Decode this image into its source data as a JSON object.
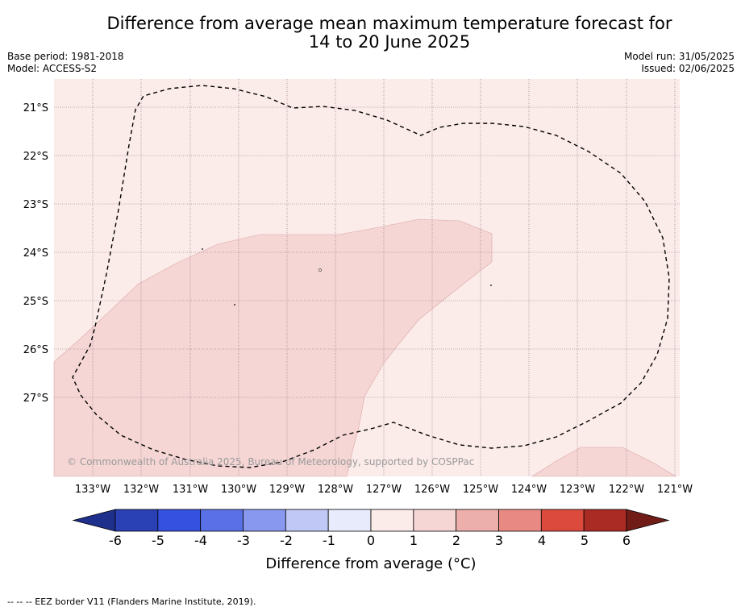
{
  "header": {
    "title_line1": "Difference from average mean maximum temperature forecast for",
    "title_line2": "14 to 20 June 2025",
    "base_period": "Base period: 1981-2018",
    "model": "Model: ACCESS-S2",
    "model_run": "Model run: 31/05/2025",
    "issued": "Issued: 02/06/2025"
  },
  "map": {
    "lat_labels": [
      "21°S",
      "22°S",
      "23°S",
      "24°S",
      "25°S",
      "26°S",
      "27°S"
    ],
    "lon_labels": [
      "133°W",
      "132°W",
      "131°W",
      "130°W",
      "129°W",
      "128°W",
      "127°W",
      "126°W",
      "125°W",
      "124°W",
      "123°W",
      "122°W",
      "121°W"
    ],
    "copyright": "© Commonwealth of Australia 2025, Bureau of Meteorology, supported by COSPPac",
    "background_class_color": "#fbebe9",
    "anomaly_class_color": "#f5d6d5"
  },
  "colorbar": {
    "title": "Difference from average (°C)",
    "ticks": [
      "-6",
      "-5",
      "-4",
      "-3",
      "-2",
      "-1",
      "0",
      "1",
      "2",
      "3",
      "4",
      "5",
      "6"
    ],
    "colors": [
      "#1f2f8c",
      "#2a40b5",
      "#3551e0",
      "#5a70e6",
      "#8898ee",
      "#c0c8f5",
      "#e8ebfb",
      "#fbebe9",
      "#f5d6d5",
      "#edafab",
      "#e88a83",
      "#db4a3c",
      "#aa2b24",
      "#721c17"
    ]
  },
  "footer": {
    "legend_text": "--  --  -- EEZ border V11 (Flanders Marine Institute, 2019)."
  }
}
